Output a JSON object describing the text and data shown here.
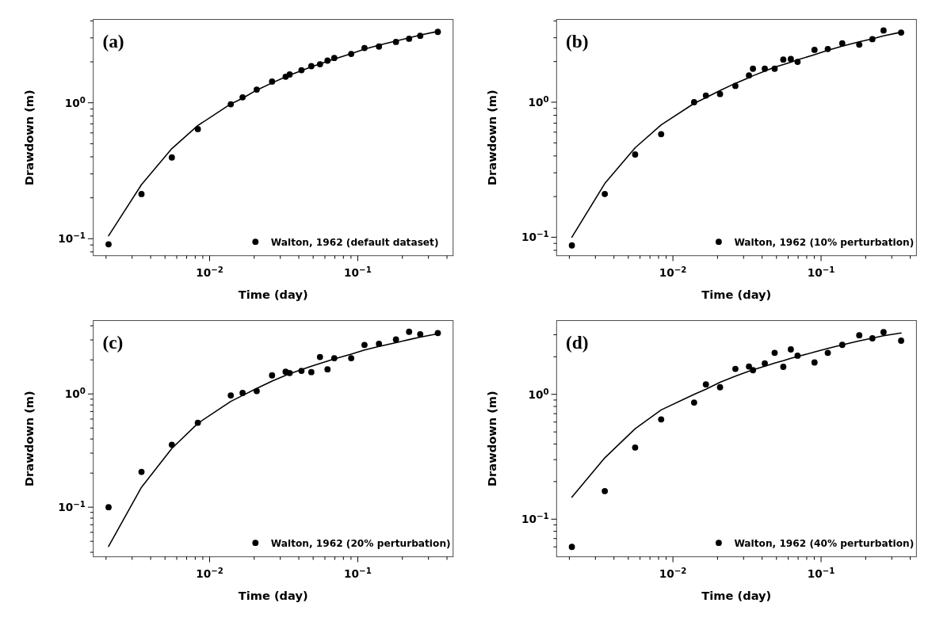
{
  "chart_data": [
    {
      "type": "line",
      "title": "(a)",
      "xlabel": "Time (day)",
      "ylabel": "Drawdown (m)",
      "log": "xy",
      "legend": "bottom right",
      "xlim": [
        0.00164,
        0.44
      ],
      "ylim": [
        0.075,
        4.1
      ],
      "xticks": [
        {
          "value": 0.002,
          "label": null
        },
        {
          "value": 0.003,
          "label": null
        },
        {
          "value": 0.004,
          "label": null
        },
        {
          "value": 0.005,
          "label": null
        },
        {
          "value": 0.006,
          "label": null
        },
        {
          "value": 0.007,
          "label": null
        },
        {
          "value": 0.008,
          "label": null
        },
        {
          "value": 0.009,
          "label": null
        },
        {
          "value": 0.01,
          "label": "10$^{−2}$"
        },
        {
          "value": 0.02,
          "label": null
        },
        {
          "value": 0.03,
          "label": null
        },
        {
          "value": 0.04,
          "label": null
        },
        {
          "value": 0.05,
          "label": null
        },
        {
          "value": 0.06,
          "label": null
        },
        {
          "value": 0.07,
          "label": null
        },
        {
          "value": 0.08,
          "label": null
        },
        {
          "value": 0.09,
          "label": null
        },
        {
          "value": 0.1,
          "label": "10$^{−1}$"
        },
        {
          "value": 0.2,
          "label": null
        },
        {
          "value": 0.3,
          "label": null
        },
        {
          "value": 0.4,
          "label": null
        }
      ],
      "yticks": [
        {
          "value": 0.08,
          "label": null
        },
        {
          "value": 0.09,
          "label": null
        },
        {
          "value": 0.1,
          "label": "10$^{−1}$"
        },
        {
          "value": 0.2,
          "label": null
        },
        {
          "value": 0.3,
          "label": null
        },
        {
          "value": 0.4,
          "label": null
        },
        {
          "value": 0.5,
          "label": null
        },
        {
          "value": 0.6,
          "label": null
        },
        {
          "value": 0.7,
          "label": null
        },
        {
          "value": 0.8,
          "label": null
        },
        {
          "value": 0.9,
          "label": null
        },
        {
          "value": 1,
          "label": "10$^{0}$"
        },
        {
          "value": 2,
          "label": null
        },
        {
          "value": 3,
          "label": null
        },
        {
          "value": 4,
          "label": null
        }
      ],
      "x": [
        0.00208,
        0.00347,
        0.00556,
        0.00833,
        0.0139,
        0.0167,
        0.0208,
        0.0264,
        0.0326,
        0.0347,
        0.0417,
        0.0486,
        0.0556,
        0.0625,
        0.0694,
        0.0903,
        0.111,
        0.139,
        0.181,
        0.222,
        0.264,
        0.347
      ],
      "series": [
        {
          "type": "line",
          "color": "#000000",
          "line_style": "solid",
          "values": [
            0.105,
            0.25,
            0.46,
            0.68,
            0.98,
            1.08,
            1.24,
            1.4,
            1.55,
            1.6,
            1.72,
            1.84,
            1.93,
            2.02,
            2.1,
            2.3,
            2.48,
            2.65,
            2.85,
            3.0,
            3.15,
            3.35
          ]
        },
        {
          "type": "scatter",
          "name": "Walton, 1962 (default dataset)",
          "color": "#000000",
          "marker": "circle",
          "values": [
            0.091,
            0.213,
            0.396,
            0.64,
            0.975,
            1.097,
            1.25,
            1.433,
            1.554,
            1.615,
            1.737,
            1.859,
            1.92,
            2.042,
            2.134,
            2.286,
            2.53,
            2.591,
            2.804,
            2.957,
            3.109,
            3.322
          ]
        }
      ]
    },
    {
      "type": "line",
      "title": "(b)",
      "xlabel": "Time (day)",
      "ylabel": "Drawdown (m)",
      "log": "xy",
      "legend": "bottom right",
      "xlim": [
        0.00164,
        0.44
      ],
      "ylim": [
        0.073,
        4.1
      ],
      "xticks": [
        {
          "value": 0.002,
          "label": null
        },
        {
          "value": 0.003,
          "label": null
        },
        {
          "value": 0.004,
          "label": null
        },
        {
          "value": 0.005,
          "label": null
        },
        {
          "value": 0.006,
          "label": null
        },
        {
          "value": 0.007,
          "label": null
        },
        {
          "value": 0.008,
          "label": null
        },
        {
          "value": 0.009,
          "label": null
        },
        {
          "value": 0.01,
          "label": "10$^{−2}$"
        },
        {
          "value": 0.02,
          "label": null
        },
        {
          "value": 0.03,
          "label": null
        },
        {
          "value": 0.04,
          "label": null
        },
        {
          "value": 0.05,
          "label": null
        },
        {
          "value": 0.06,
          "label": null
        },
        {
          "value": 0.07,
          "label": null
        },
        {
          "value": 0.08,
          "label": null
        },
        {
          "value": 0.09,
          "label": null
        },
        {
          "value": 0.1,
          "label": "10$^{−1}$"
        },
        {
          "value": 0.2,
          "label": null
        },
        {
          "value": 0.3,
          "label": null
        },
        {
          "value": 0.4,
          "label": null
        }
      ],
      "yticks": [
        {
          "value": 0.08,
          "label": null
        },
        {
          "value": 0.09,
          "label": null
        },
        {
          "value": 0.1,
          "label": "10$^{−1}$"
        },
        {
          "value": 0.2,
          "label": null
        },
        {
          "value": 0.3,
          "label": null
        },
        {
          "value": 0.4,
          "label": null
        },
        {
          "value": 0.5,
          "label": null
        },
        {
          "value": 0.6,
          "label": null
        },
        {
          "value": 0.7,
          "label": null
        },
        {
          "value": 0.8,
          "label": null
        },
        {
          "value": 0.9,
          "label": null
        },
        {
          "value": 1,
          "label": "10$^{0}$"
        },
        {
          "value": 2,
          "label": null
        },
        {
          "value": 3,
          "label": null
        },
        {
          "value": 4,
          "label": null
        }
      ],
      "x": [
        0.00208,
        0.00347,
        0.00556,
        0.00833,
        0.0139,
        0.0167,
        0.0208,
        0.0264,
        0.0326,
        0.0347,
        0.0417,
        0.0486,
        0.0556,
        0.0625,
        0.0694,
        0.0903,
        0.111,
        0.139,
        0.181,
        0.222,
        0.264,
        0.347
      ],
      "series": [
        {
          "type": "line",
          "color": "#000000",
          "line_style": "solid",
          "values": [
            0.1,
            0.25,
            0.46,
            0.68,
            0.98,
            1.08,
            1.22,
            1.38,
            1.52,
            1.57,
            1.7,
            1.82,
            1.9,
            1.98,
            2.06,
            2.25,
            2.42,
            2.6,
            2.8,
            2.95,
            3.1,
            3.3
          ]
        },
        {
          "type": "scatter",
          "name": "Walton, 1962 (10% perturbation)",
          "color": "#000000",
          "marker": "circle",
          "values": [
            0.087,
            0.209,
            0.41,
            0.58,
            1.0,
            1.12,
            1.15,
            1.32,
            1.58,
            1.77,
            1.77,
            1.77,
            2.07,
            2.09,
            1.99,
            2.44,
            2.48,
            2.73,
            2.67,
            2.93,
            3.4,
            3.28
          ]
        }
      ]
    },
    {
      "type": "line",
      "title": "(c)",
      "xlabel": "Time (day)",
      "ylabel": "Drawdown (m)",
      "log": "xy",
      "legend": "bottom right",
      "xlim": [
        0.00164,
        0.44
      ],
      "ylim": [
        0.0365,
        4.45
      ],
      "xticks": [
        {
          "value": 0.002,
          "label": null
        },
        {
          "value": 0.003,
          "label": null
        },
        {
          "value": 0.004,
          "label": null
        },
        {
          "value": 0.005,
          "label": null
        },
        {
          "value": 0.006,
          "label": null
        },
        {
          "value": 0.007,
          "label": null
        },
        {
          "value": 0.008,
          "label": null
        },
        {
          "value": 0.009,
          "label": null
        },
        {
          "value": 0.01,
          "label": "10$^{−2}$"
        },
        {
          "value": 0.02,
          "label": null
        },
        {
          "value": 0.03,
          "label": null
        },
        {
          "value": 0.04,
          "label": null
        },
        {
          "value": 0.05,
          "label": null
        },
        {
          "value": 0.06,
          "label": null
        },
        {
          "value": 0.07,
          "label": null
        },
        {
          "value": 0.08,
          "label": null
        },
        {
          "value": 0.09,
          "label": null
        },
        {
          "value": 0.1,
          "label": "10$^{−1}$"
        },
        {
          "value": 0.2,
          "label": null
        },
        {
          "value": 0.3,
          "label": null
        },
        {
          "value": 0.4,
          "label": null
        }
      ],
      "yticks": [
        {
          "value": 0.04,
          "label": null
        },
        {
          "value": 0.05,
          "label": null
        },
        {
          "value": 0.06,
          "label": null
        },
        {
          "value": 0.07,
          "label": null
        },
        {
          "value": 0.08,
          "label": null
        },
        {
          "value": 0.09,
          "label": null
        },
        {
          "value": 0.1,
          "label": "10$^{−1}$"
        },
        {
          "value": 0.2,
          "label": null
        },
        {
          "value": 0.3,
          "label": null
        },
        {
          "value": 0.4,
          "label": null
        },
        {
          "value": 0.5,
          "label": null
        },
        {
          "value": 0.6,
          "label": null
        },
        {
          "value": 0.7,
          "label": null
        },
        {
          "value": 0.8,
          "label": null
        },
        {
          "value": 0.9,
          "label": null
        },
        {
          "value": 1,
          "label": "10$^{0}$"
        },
        {
          "value": 2,
          "label": null
        },
        {
          "value": 3,
          "label": null
        },
        {
          "value": 4,
          "label": null
        }
      ],
      "x": [
        0.00208,
        0.00347,
        0.00556,
        0.00833,
        0.0139,
        0.0167,
        0.0208,
        0.0264,
        0.0326,
        0.0347,
        0.0417,
        0.0486,
        0.0556,
        0.0625,
        0.0694,
        0.0903,
        0.111,
        0.139,
        0.181,
        0.222,
        0.264,
        0.347
      ],
      "series": [
        {
          "type": "line",
          "color": "#000000",
          "line_style": "solid",
          "values": [
            0.045,
            0.15,
            0.33,
            0.55,
            0.86,
            0.97,
            1.12,
            1.3,
            1.46,
            1.51,
            1.64,
            1.76,
            1.86,
            1.95,
            2.04,
            2.25,
            2.44,
            2.63,
            2.84,
            3.02,
            3.18,
            3.4
          ]
        },
        {
          "type": "scatter",
          "name": "Walton, 1962 (20% perturbation)",
          "color": "#000000",
          "marker": "circle",
          "values": [
            0.1,
            0.205,
            0.356,
            0.557,
            0.97,
            1.02,
            1.06,
            1.46,
            1.57,
            1.53,
            1.6,
            1.56,
            2.12,
            1.65,
            2.07,
            2.07,
            2.71,
            2.77,
            3.03,
            3.54,
            3.37,
            3.45
          ]
        }
      ]
    },
    {
      "type": "line",
      "title": "(d)",
      "xlabel": "Time (day)",
      "ylabel": "Drawdown (m)",
      "log": "xy",
      "legend": "bottom right",
      "xlim": [
        0.00164,
        0.44
      ],
      "ylim": [
        0.05,
        3.9
      ],
      "xticks": [
        {
          "value": 0.002,
          "label": null
        },
        {
          "value": 0.003,
          "label": null
        },
        {
          "value": 0.004,
          "label": null
        },
        {
          "value": 0.005,
          "label": null
        },
        {
          "value": 0.006,
          "label": null
        },
        {
          "value": 0.007,
          "label": null
        },
        {
          "value": 0.008,
          "label": null
        },
        {
          "value": 0.009,
          "label": null
        },
        {
          "value": 0.01,
          "label": "10$^{−2}$"
        },
        {
          "value": 0.02,
          "label": null
        },
        {
          "value": 0.03,
          "label": null
        },
        {
          "value": 0.04,
          "label": null
        },
        {
          "value": 0.05,
          "label": null
        },
        {
          "value": 0.06,
          "label": null
        },
        {
          "value": 0.07,
          "label": null
        },
        {
          "value": 0.08,
          "label": null
        },
        {
          "value": 0.09,
          "label": null
        },
        {
          "value": 0.1,
          "label": "10$^{−1}$"
        },
        {
          "value": 0.2,
          "label": null
        },
        {
          "value": 0.3,
          "label": null
        },
        {
          "value": 0.4,
          "label": null
        }
      ],
      "yticks": [
        {
          "value": 0.06,
          "label": null
        },
        {
          "value": 0.07,
          "label": null
        },
        {
          "value": 0.08,
          "label": null
        },
        {
          "value": 0.09,
          "label": null
        },
        {
          "value": 0.1,
          "label": "10$^{−1}$"
        },
        {
          "value": 0.2,
          "label": null
        },
        {
          "value": 0.3,
          "label": null
        },
        {
          "value": 0.4,
          "label": null
        },
        {
          "value": 0.5,
          "label": null
        },
        {
          "value": 0.6,
          "label": null
        },
        {
          "value": 0.7,
          "label": null
        },
        {
          "value": 0.8,
          "label": null
        },
        {
          "value": 0.9,
          "label": null
        },
        {
          "value": 1,
          "label": "10$^{0}$"
        },
        {
          "value": 2,
          "label": null
        },
        {
          "value": 3,
          "label": null
        }
      ],
      "x": [
        0.00208,
        0.00347,
        0.00556,
        0.00833,
        0.0139,
        0.0167,
        0.0208,
        0.0264,
        0.0326,
        0.0347,
        0.0417,
        0.0486,
        0.0556,
        0.0625,
        0.0694,
        0.0903,
        0.111,
        0.139,
        0.181,
        0.222,
        0.264,
        0.347
      ],
      "series": [
        {
          "type": "line",
          "color": "#000000",
          "line_style": "solid",
          "values": [
            0.15,
            0.31,
            0.53,
            0.75,
            1.0,
            1.1,
            1.25,
            1.4,
            1.53,
            1.57,
            1.68,
            1.78,
            1.86,
            1.94,
            2.01,
            2.18,
            2.33,
            2.49,
            2.68,
            2.82,
            2.95,
            3.1
          ]
        },
        {
          "type": "scatter",
          "name": "Walton, 1962 (40% perturbation)",
          "color": "#000000",
          "marker": "circle",
          "values": [
            0.06,
            0.168,
            0.375,
            0.63,
            0.86,
            1.2,
            1.14,
            1.6,
            1.67,
            1.56,
            1.77,
            2.15,
            1.66,
            2.29,
            2.04,
            1.8,
            2.15,
            2.49,
            2.97,
            2.81,
            3.15,
            2.69
          ]
        }
      ]
    }
  ]
}
